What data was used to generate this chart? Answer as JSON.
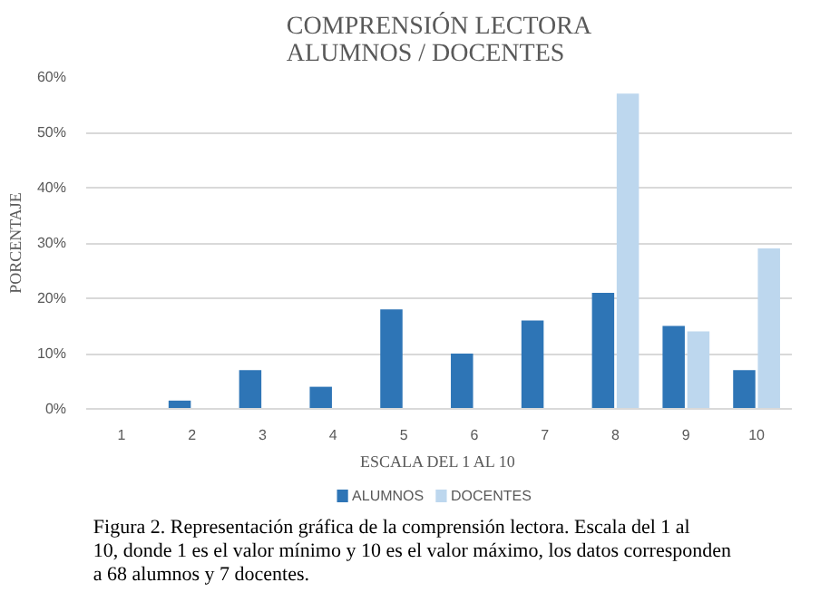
{
  "chart_data": {
    "type": "bar",
    "title": "COMPRENSIÓN LECTORA\nALUMNOS / DOCENTES",
    "xlabel": "ESCALA DEL 1 AL 10",
    "ylabel": "PORCENTAJE",
    "categories": [
      "1",
      "2",
      "3",
      "4",
      "5",
      "6",
      "7",
      "8",
      "9",
      "10"
    ],
    "series": [
      {
        "name": "ALUMNOS",
        "color": "#2e75b6",
        "values": [
          0,
          1.5,
          7,
          4,
          18,
          10,
          16,
          21,
          15,
          7
        ]
      },
      {
        "name": "DOCENTES",
        "color": "#bdd7ee",
        "values": [
          0,
          0,
          0,
          0,
          0,
          0,
          0,
          57,
          14,
          29
        ]
      }
    ],
    "ylim": [
      0,
      60
    ],
    "yticks": [
      {
        "value": 0,
        "label": "0%"
      },
      {
        "value": 10,
        "label": "10%"
      },
      {
        "value": 20,
        "label": "20%"
      },
      {
        "value": 30,
        "label": "30%"
      },
      {
        "value": 40,
        "label": "40%"
      },
      {
        "value": 50,
        "label": "50%"
      },
      {
        "value": 60,
        "label": "60%"
      }
    ],
    "grid": "y",
    "legend": "bottom",
    "annotations": [
      "Figura 2. Representación gráfica de la comprensión lectora. Escala del 1 al 10, donde 1 es el valor mínimo y 10 es el valor máximo, los datos corresponden a 68 alumnos y 7 docentes."
    ]
  }
}
